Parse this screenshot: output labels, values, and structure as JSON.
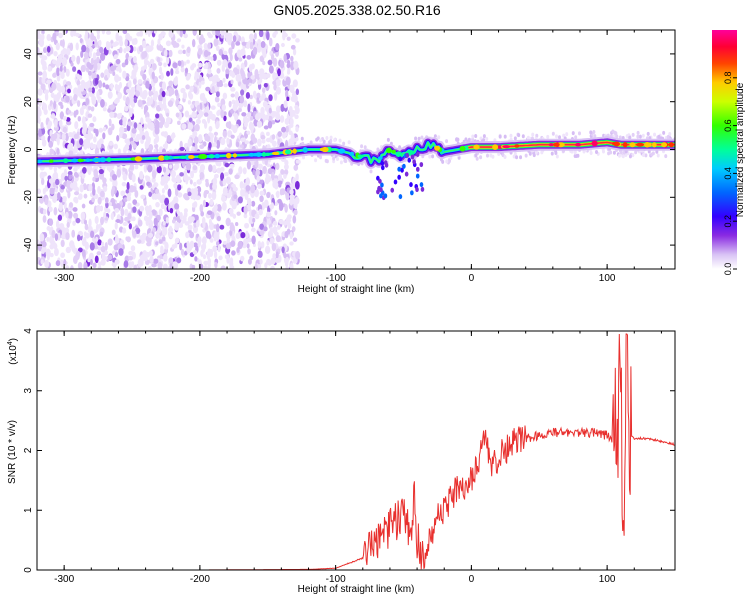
{
  "title": "GN05.2025.338.02.50.R16",
  "chart_data": [
    {
      "type": "heatmap",
      "xlabel": "Height of straight line (km)",
      "ylabel": "Frequency (Hz)",
      "xlim": [
        -320,
        150
      ],
      "ylim": [
        -50,
        50
      ],
      "x_ticks": [
        -300,
        -200,
        -100,
        0,
        100
      ],
      "y_ticks": [
        -40,
        -20,
        0,
        20,
        40
      ],
      "colorbar": {
        "label": "Normalized spectral amplitude",
        "range": [
          0,
          1
        ],
        "ticks": [
          "0.0",
          "0.2",
          "0.4",
          "0.6",
          "0.8"
        ],
        "colormap": "rainbow (white/violet low → red/magenta high)"
      },
      "ridge": {
        "description": "dominant frequency vs height",
        "x": [
          -320,
          -250,
          -200,
          -150,
          -120,
          -100,
          -80,
          -70,
          -60,
          -50,
          -40,
          -30,
          -20,
          -10,
          0,
          20,
          50,
          80,
          100,
          110,
          150
        ],
        "y": [
          -5,
          -4,
          -3,
          -2,
          0,
          0,
          -3,
          -5,
          0,
          -3,
          0,
          2,
          -1,
          0,
          1,
          1,
          2,
          2,
          3,
          2,
          2
        ]
      },
      "grid": false
    },
    {
      "type": "line",
      "xlabel": "Height of straight line (km)",
      "ylabel": "SNR (10 * v/v)",
      "y_scale_label": "(x10",
      "y_scale_exp": "4",
      "xlim": [
        -320,
        150
      ],
      "ylim": [
        0,
        4
      ],
      "x_ticks": [
        -300,
        -200,
        -100,
        0,
        100
      ],
      "y_ticks": [
        0,
        1,
        2,
        3,
        4
      ],
      "series": [
        {
          "color": "#e8302e",
          "x": [
            -320,
            -200,
            -120,
            -100,
            -80,
            -70,
            -60,
            -50,
            -45,
            -42,
            -40,
            -37,
            -35,
            -30,
            -25,
            -20,
            -15,
            -10,
            -5,
            0,
            5,
            10,
            15,
            20,
            25,
            30,
            35,
            40,
            50,
            60,
            70,
            80,
            90,
            100,
            104,
            106,
            108,
            110,
            112,
            114,
            116,
            120,
            130,
            140,
            150
          ],
          "y": [
            0.0,
            0.0,
            0.01,
            0.03,
            0.2,
            0.4,
            0.7,
            0.9,
            0.6,
            1.3,
            0.5,
            0.3,
            0.2,
            0.4,
            0.9,
            1.0,
            1.2,
            1.4,
            1.3,
            1.5,
            1.8,
            2.2,
            1.7,
            1.9,
            2.0,
            2.1,
            2.2,
            2.2,
            2.25,
            2.3,
            2.3,
            2.3,
            2.3,
            2.25,
            2.2,
            2.6,
            2.4,
            3.3,
            0.6,
            3.8,
            2.3,
            2.2,
            2.2,
            2.15,
            2.1
          ]
        }
      ],
      "grid": false
    }
  ]
}
